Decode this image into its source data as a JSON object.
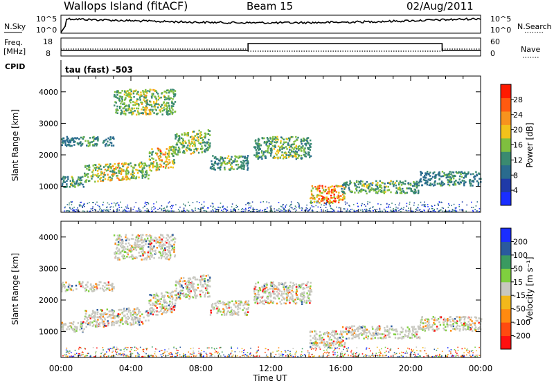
{
  "header": {
    "station": "Wallops Island (fitACF)",
    "beam": "Beam 15",
    "date": "02/Aug/2011"
  },
  "top_panels": {
    "nsky_label": "N.Sky",
    "nsearch_label": "N.Search",
    "noise_ticks": [
      "10^5",
      "10^0"
    ],
    "freq_label_1": "Freq.",
    "freq_label_2": "[MHz]",
    "freq_ticks": [
      "18",
      "8"
    ],
    "nave_label": "Nave",
    "nave_ticks": [
      "60",
      "0"
    ],
    "cpid_label": "CPID",
    "cpid_text": "tau (fast) -503"
  },
  "colors": {
    "power_scale": [
      "#1a2eff",
      "#1f3aa8",
      "#2a6b8e",
      "#3a8a70",
      "#7fbf3f",
      "#f2c21b",
      "#f7931e",
      "#ff5a10",
      "#ff1a00"
    ],
    "velocity_scale": [
      "#ff1010",
      "#ff4a10",
      "#ff8a10",
      "#f2b81b",
      "#c8c8c0",
      "#7fcf3f",
      "#3a9a60",
      "#2a5a9e",
      "#1a2eff"
    ]
  },
  "chart_data": [
    {
      "type": "heatmap",
      "name": "power",
      "xlabel": "",
      "ylabel": "Slant Range [km]",
      "xlim": [
        0,
        24
      ],
      "ylim": [
        180,
        4500
      ],
      "yticks": [
        "1000",
        "2000",
        "3000",
        "4000"
      ],
      "colorbar_label": "Power [dB]",
      "colorbar_ticks": [
        "4",
        "8",
        "12",
        "16",
        "20",
        "24",
        "28"
      ],
      "colorbar_range": [
        0,
        32
      ],
      "echo_bands": [
        {
          "t": [
            0.0,
            1.3
          ],
          "range_km": [
            1000,
            1350
          ],
          "value": 14
        },
        {
          "t": [
            1.3,
            5.0
          ],
          "range_km": [
            1150,
            1700
          ],
          "value": 20
        },
        {
          "t": [
            5.0,
            6.5
          ],
          "range_km": [
            1500,
            2200
          ],
          "value": 22
        },
        {
          "t": [
            6.5,
            8.5
          ],
          "range_km": [
            2000,
            2700
          ],
          "value": 18
        },
        {
          "t": [
            8.5,
            10.7
          ],
          "range_km": [
            1550,
            2000
          ],
          "value": 14
        },
        {
          "t": [
            3.0,
            6.5
          ],
          "range_km": [
            3300,
            4100
          ],
          "value": 18
        },
        {
          "t": [
            0.0,
            3.0
          ],
          "range_km": [
            2300,
            2600
          ],
          "value": 12
        },
        {
          "t": [
            11.0,
            14.3
          ],
          "range_km": [
            1900,
            2600
          ],
          "value": 16
        },
        {
          "t": [
            14.2,
            16.3
          ],
          "range_km": [
            500,
            1050
          ],
          "value": 28
        },
        {
          "t": [
            16.0,
            20.5
          ],
          "range_km": [
            800,
            1200
          ],
          "value": 16
        },
        {
          "t": [
            20.5,
            24.0
          ],
          "range_km": [
            1050,
            1500
          ],
          "value": 12
        }
      ]
    },
    {
      "type": "heatmap",
      "name": "velocity",
      "xlabel": "Time UT",
      "ylabel": "Slant Range [km]",
      "xlim": [
        0,
        24
      ],
      "ylim": [
        180,
        4500
      ],
      "xticks": [
        "00:00",
        "04:00",
        "08:00",
        "12:00",
        "16:00",
        "20:00",
        "00:00"
      ],
      "yticks": [
        "1000",
        "2000",
        "3000",
        "4000"
      ],
      "colorbar_label": "Velocity [m s⁻¹]",
      "colorbar_ticks": [
        "-200",
        "-100",
        "-50",
        "-15",
        "15",
        "50",
        "100",
        "200"
      ]
    }
  ]
}
